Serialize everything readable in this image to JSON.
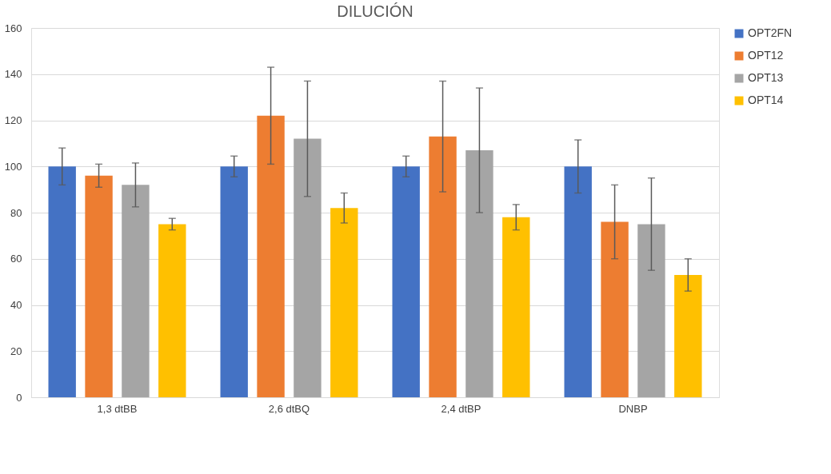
{
  "chart_data": {
    "type": "bar",
    "title": "DILUCIÓN",
    "categories": [
      "1,3 dtBB",
      "2,6 dtBQ",
      "2,4 dtBP",
      "DNBP"
    ],
    "series": [
      {
        "name": "OPT2FN",
        "color": "#4472c4",
        "values": [
          100,
          100,
          100,
          100
        ],
        "errors": [
          8,
          4.5,
          4.5,
          11.5
        ]
      },
      {
        "name": "OPT12",
        "color": "#ed7d31",
        "values": [
          96,
          122,
          113,
          76
        ],
        "errors": [
          5,
          21,
          24,
          16
        ]
      },
      {
        "name": "OPT13",
        "color": "#a5a5a5",
        "values": [
          92,
          112,
          107,
          75
        ],
        "errors": [
          9.5,
          25,
          27,
          20
        ]
      },
      {
        "name": "OPT14",
        "color": "#ffc000",
        "values": [
          75,
          82,
          78,
          53
        ],
        "errors": [
          2.5,
          6.5,
          5.5,
          7
        ]
      }
    ],
    "ylim": [
      0,
      160
    ],
    "yticks": [
      0,
      20,
      40,
      60,
      80,
      100,
      120,
      140,
      160
    ],
    "grid": "y",
    "legend": "right"
  }
}
